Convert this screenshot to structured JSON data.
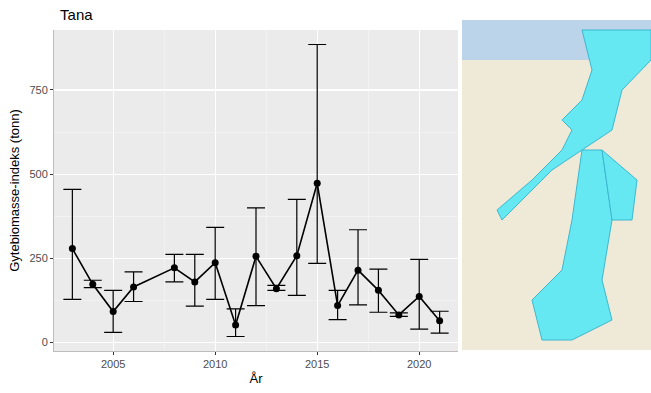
{
  "chart_data": {
    "type": "line",
    "title": "Tana",
    "x_label": "År",
    "y_label": "Gytebiomasse-indeks (tonn)",
    "x": [
      2003,
      2004,
      2005,
      2006,
      2008,
      2009,
      2010,
      2011,
      2012,
      2013,
      2014,
      2015,
      2016,
      2017,
      2018,
      2019,
      2020,
      2021
    ],
    "values": [
      279,
      173,
      92,
      165,
      222,
      180,
      237,
      52,
      256,
      160,
      258,
      473,
      110,
      215,
      155,
      82,
      137,
      65
    ],
    "lower": [
      128,
      163,
      30,
      122,
      180,
      108,
      128,
      18,
      110,
      155,
      140,
      235,
      68,
      112,
      90,
      78,
      40,
      28
    ],
    "upper": [
      455,
      185,
      155,
      210,
      262,
      262,
      342,
      100,
      400,
      170,
      425,
      885,
      155,
      335,
      218,
      88,
      247,
      93
    ],
    "color": "#000000",
    "marker": "circle",
    "xlim": [
      2002.1,
      2021.9
    ],
    "ylim": [
      -25,
      928
    ],
    "xticks": [
      2005,
      2010,
      2015,
      2020
    ],
    "yticks": [
      0,
      250,
      500,
      750
    ],
    "grid": true
  }
}
